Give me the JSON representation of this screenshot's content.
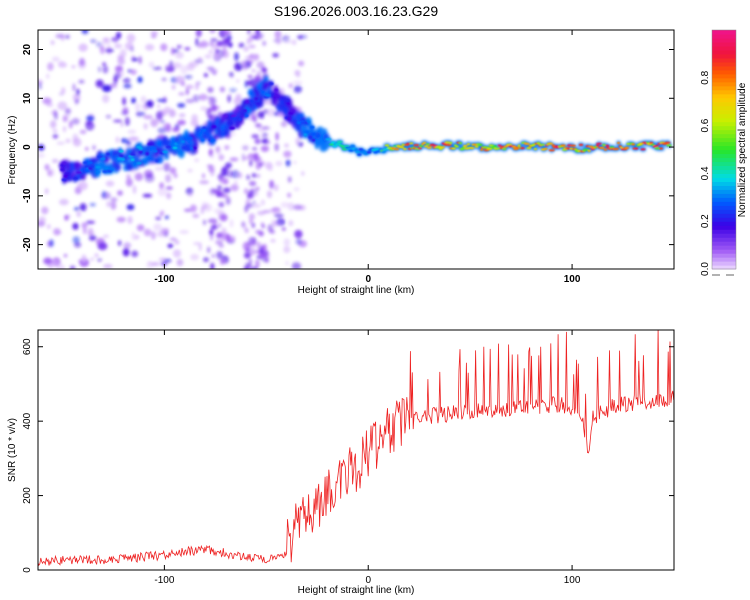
{
  "chart_data": [
    {
      "type": "heatmap",
      "title": "S196.2026.003.16.23.G29",
      "xlabel": "Height of straight line (km)",
      "ylabel": "Frequency (Hz)",
      "xlim": [
        -162,
        150
      ],
      "ylim": [
        -25,
        24
      ],
      "xticks": [
        -100,
        0,
        100
      ],
      "xtick_labels": [
        "-100",
        "0",
        "100"
      ],
      "yticks": [
        -20,
        -10,
        0,
        10,
        20
      ],
      "ytick_labels": [
        "-20",
        "-10",
        "0",
        "10",
        "20"
      ],
      "colorbar": {
        "label": "Normalized spectral amplitude",
        "range": [
          0,
          1
        ],
        "ticks": [
          0.0,
          0.2,
          0.4,
          0.6,
          0.8
        ],
        "tick_labels": [
          "0.0",
          "0.2",
          "0.4",
          "0.6",
          "0.8"
        ]
      },
      "ridge": {
        "x": [
          -145,
          -135,
          -125,
          -115,
          -105,
          -95,
          -85,
          -75,
          -65,
          -58,
          -50,
          -44,
          -38,
          -32,
          -25,
          -18,
          -10,
          -5,
          0,
          5,
          10,
          20,
          40,
          60,
          80,
          100,
          120,
          148
        ],
        "frequency": [
          -5,
          -4,
          -3,
          -2,
          -1,
          0,
          1.5,
          3.5,
          6,
          9,
          12,
          10,
          7,
          4,
          2,
          1,
          0,
          -1,
          -1.5,
          -0.5,
          0,
          0.2,
          0.3,
          0,
          0.3,
          -0.3,
          0.2,
          0.2
        ],
        "amplitude": [
          0.25,
          0.3,
          0.35,
          0.35,
          0.3,
          0.35,
          0.3,
          0.3,
          0.25,
          0.3,
          0.3,
          0.25,
          0.25,
          0.3,
          0.4,
          0.45,
          0.45,
          0.4,
          0.35,
          0.4,
          0.7,
          0.9,
          0.9,
          0.9,
          0.9,
          0.9,
          0.9,
          0.9
        ]
      }
    },
    {
      "type": "line",
      "xlabel": "Height of straight line (km)",
      "ylabel": "SNR (10 * v/v)",
      "xlim": [
        -162,
        150
      ],
      "ylim": [
        0,
        645
      ],
      "xticks": [
        -100,
        0,
        100
      ],
      "xtick_labels": [
        "-100",
        "0",
        "100"
      ],
      "yticks": [
        0,
        200,
        400,
        600
      ],
      "ytick_labels": [
        "0",
        "200",
        "400",
        "600"
      ],
      "series": [
        {
          "name": "SNR",
          "color": "#ee2222",
          "x": [
            -162,
            -140,
            -120,
            -110,
            -100,
            -90,
            -80,
            -70,
            -60,
            -50,
            -42,
            -38,
            -35,
            -30,
            -25,
            -20,
            -15,
            -10,
            -5,
            0,
            5,
            10,
            15,
            20,
            25,
            30,
            40,
            50,
            60,
            70,
            80,
            90,
            100,
            105,
            108,
            110,
            120,
            130,
            140,
            150
          ],
          "y": [
            18,
            22,
            25,
            30,
            35,
            45,
            50,
            40,
            30,
            25,
            30,
            60,
            100,
            130,
            160,
            180,
            210,
            240,
            260,
            290,
            320,
            350,
            375,
            395,
            410,
            415,
            420,
            425,
            430,
            435,
            440,
            445,
            440,
            415,
            300,
            410,
            440,
            450,
            455,
            460
          ]
        }
      ]
    }
  ]
}
